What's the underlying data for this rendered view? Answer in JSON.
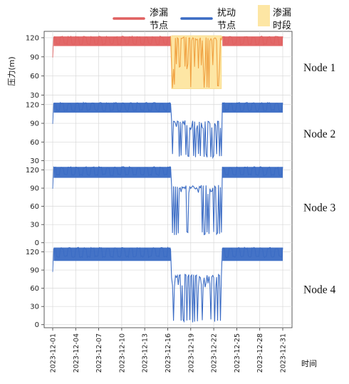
{
  "chart_data": {
    "type": "line",
    "xlabel": "时间",
    "ylabel": "压力(m)",
    "x_ticks": [
      "2023-12-01",
      "2023-12-04",
      "2023-12-07",
      "2023-12-10",
      "2023-12-13",
      "2023-12-16",
      "2023-12-19",
      "2023-12-22",
      "2023-12-25",
      "2023-12-28",
      "2023-12-31"
    ],
    "x_range": [
      "2023-12-01",
      "2023-12-31"
    ],
    "grid": true,
    "legend": {
      "placement": "top-right",
      "entries": [
        {
          "label_line1": "渗漏",
          "label_line2": "节点",
          "kind": "line",
          "color": "#e06060"
        },
        {
          "label_line1": "扰动",
          "label_line2": "节点",
          "kind": "line",
          "color": "#3a6bc4"
        },
        {
          "label_line1": "渗漏",
          "label_line2": "时段",
          "kind": "patch",
          "color": "#fde6a4"
        }
      ]
    },
    "leak_period": {
      "start": "2023-12-16 12:00",
      "end": "2023-12-23"
    },
    "panels": [
      {
        "name": "Node 1",
        "role": "leak",
        "color": "#e06060",
        "leak_color": "#f0a040",
        "yticks": [
          30,
          60,
          90,
          120
        ],
        "ylim": [
          25,
          130
        ],
        "normal_high": 121,
        "normal_low": 97,
        "leak_high": 118,
        "leak_low": 70,
        "leak_drop": 41
      },
      {
        "name": "Node 2",
        "role": "disturbance",
        "color": "#3a6bc4",
        "yticks": [
          30,
          60,
          90,
          120
        ],
        "ylim": [
          25,
          130
        ],
        "normal_high": 122,
        "normal_low": 97,
        "leak_high": 92,
        "leak_low": 80,
        "leak_drop": 35
      },
      {
        "name": "Node 3",
        "role": "disturbance",
        "color": "#3a6bc4",
        "yticks": [
          0,
          30,
          60,
          90,
          120
        ],
        "ylim": [
          -5,
          130
        ],
        "normal_high": 124,
        "normal_low": 97,
        "leak_high": 92,
        "leak_low": 80,
        "leak_drop": 12
      },
      {
        "name": "Node 4",
        "role": "disturbance",
        "color": "#3a6bc4",
        "yticks": [
          0,
          30,
          60,
          90,
          120
        ],
        "ylim": [
          -5,
          130
        ],
        "normal_high": 126,
        "normal_low": 95,
        "leak_high": 80,
        "leak_low": 60,
        "leak_drop": 3
      }
    ]
  }
}
